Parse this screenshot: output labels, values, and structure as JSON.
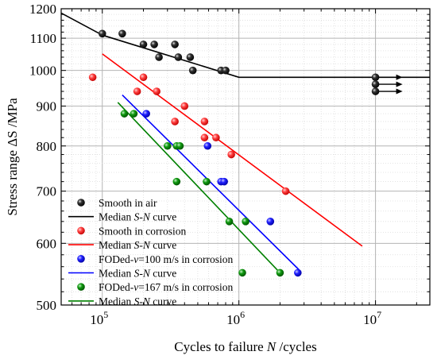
{
  "chart_data": {
    "type": "scatter",
    "xscale": "log",
    "yscale": "log",
    "xlabel": "Cycles to failure N /cycles",
    "ylabel": "Stress range ΔS /MPa",
    "xlim": [
      50000,
      25000000
    ],
    "ylim": [
      500,
      1200
    ],
    "grid": true,
    "legend_position": "bottom-left",
    "x_tick_labels": [
      {
        "value": 100000,
        "base": "10",
        "exp": "5"
      },
      {
        "value": 1000000,
        "base": "10",
        "exp": "6"
      },
      {
        "value": 10000000,
        "base": "10",
        "exp": "7"
      }
    ],
    "y_ticks": [
      500,
      600,
      700,
      800,
      900,
      1000,
      1100,
      1200
    ],
    "runout_markers": {
      "x": 10000000,
      "y": [
        980,
        960,
        940
      ]
    },
    "series": [
      {
        "name": "Smooth in air",
        "color": "#000000",
        "marker": "ball",
        "points": [
          [
            100000,
            1115
          ],
          [
            140000,
            1115
          ],
          [
            200000,
            1080
          ],
          [
            240000,
            1080
          ],
          [
            260000,
            1040
          ],
          [
            340000,
            1080
          ],
          [
            360000,
            1040
          ],
          [
            440000,
            1040
          ],
          [
            460000,
            1000
          ],
          [
            740000,
            1000
          ],
          [
            800000,
            1000
          ],
          [
            10000000,
            980
          ],
          [
            10000000,
            960
          ],
          [
            10000000,
            940
          ]
        ]
      },
      {
        "name": "Median S-N curve",
        "color": "#000000",
        "type": "line",
        "points": [
          [
            50000,
            1185
          ],
          [
            100000,
            1110
          ],
          [
            1000000,
            980
          ],
          [
            25000000,
            980
          ]
        ]
      },
      {
        "name": "Smooth in corrosion",
        "color": "#ff0000",
        "marker": "ball",
        "points": [
          [
            85000,
            980
          ],
          [
            180000,
            940
          ],
          [
            200000,
            980
          ],
          [
            250000,
            940
          ],
          [
            400000,
            900
          ],
          [
            340000,
            860
          ],
          [
            560000,
            860
          ],
          [
            680000,
            820
          ],
          [
            880000,
            780
          ],
          [
            560000,
            820
          ],
          [
            2200000,
            700
          ]
        ]
      },
      {
        "name": "Median S-N curve",
        "color": "#ff0000",
        "type": "line",
        "points": [
          [
            100000,
            1050
          ],
          [
            8000000,
            595
          ]
        ]
      },
      {
        "name": "FODed-v=100 m/s in corrosion",
        "color": "#0000ff",
        "marker": "ball",
        "points": [
          [
            210000,
            880
          ],
          [
            590000,
            800
          ],
          [
            740000,
            720
          ],
          [
            780000,
            720
          ],
          [
            1700000,
            640
          ],
          [
            2700000,
            550
          ]
        ]
      },
      {
        "name": "Median S-N curve",
        "color": "#0000ff",
        "type": "line",
        "points": [
          [
            140000,
            930
          ],
          [
            2750000,
            555
          ]
        ]
      },
      {
        "name": "FODed-v=167 m/s in corrosion",
        "color": "#008000",
        "marker": "ball",
        "points": [
          [
            145000,
            880
          ],
          [
            170000,
            880
          ],
          [
            300000,
            800
          ],
          [
            350000,
            800
          ],
          [
            370000,
            800
          ],
          [
            350000,
            720
          ],
          [
            580000,
            720
          ],
          [
            850000,
            640
          ],
          [
            1120000,
            640
          ],
          [
            1060000,
            550
          ],
          [
            2000000,
            550
          ]
        ]
      },
      {
        "name": "Median S-N curve",
        "color": "#008000",
        "type": "line",
        "points": [
          [
            130000,
            910
          ],
          [
            2000000,
            550
          ]
        ]
      }
    ],
    "legend_entries": [
      {
        "label": "Smooth in air",
        "kind": "marker",
        "color": "#000000"
      },
      {
        "label_parts": [
          "Median ",
          "S-N",
          " curve"
        ],
        "kind": "line",
        "color": "#000000"
      },
      {
        "label": "Smooth in corrosion",
        "kind": "marker",
        "color": "#ff0000"
      },
      {
        "label_parts": [
          "Median ",
          "S-N",
          " curve"
        ],
        "kind": "line",
        "color": "#ff0000"
      },
      {
        "label_parts": [
          "FODed-",
          "v",
          "=100 m/s in corrosion"
        ],
        "kind": "marker",
        "color": "#0000ff"
      },
      {
        "label_parts": [
          "Median ",
          "S-N",
          " curve"
        ],
        "kind": "line",
        "color": "#0000ff"
      },
      {
        "label_parts": [
          "FODed-",
          "v",
          "=167 m/s in corrosion"
        ],
        "kind": "marker",
        "color": "#008000"
      },
      {
        "label_parts": [
          "Median ",
          "S-N",
          " curve"
        ],
        "kind": "line",
        "color": "#008000"
      }
    ]
  }
}
